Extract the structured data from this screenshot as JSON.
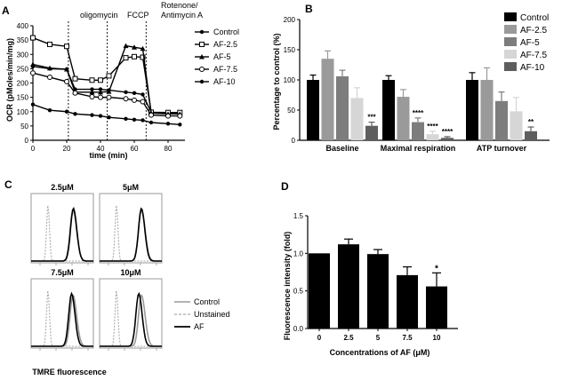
{
  "panels": {
    "A": {
      "letter": "A",
      "ylabel": "OCR (pMoles/min/mg)",
      "xlabel": "time (min)",
      "annotations": {
        "oligomycin": "oligomycin",
        "fccp": "FCCP",
        "rotenone_line1": "Rotenone/",
        "rotenone_line2": "Antimycin A"
      }
    },
    "B": {
      "letter": "B",
      "ylabel": "Percentage to control (%)"
    },
    "C": {
      "letter": "C",
      "xlabel": "TMRE fluorescence",
      "legend": [
        "Control",
        "Unstained",
        "AF"
      ],
      "subplots": [
        "2.5μM",
        "5μM",
        "7.5μM",
        "10μM"
      ]
    },
    "D": {
      "letter": "D",
      "ylabel": "Fluorescence intensity (fold)",
      "xlabel": "Concentrations of AF (μM)"
    }
  },
  "colors": {
    "control": "#000000",
    "af25": "#9a9a9a",
    "af5": "#7d7d7d",
    "af75": "#d6d6d6",
    "af10": "#5e5e5e",
    "hist_control": "#9a9a9a",
    "hist_unstained": "#aaaaaa",
    "hist_af": "#000000"
  },
  "chart_data": [
    {
      "id": "A",
      "type": "line",
      "x": [
        0,
        10,
        20,
        25,
        35,
        40,
        45,
        55,
        60,
        65,
        70,
        80,
        87
      ],
      "series": [
        {
          "name": "Control",
          "marker": "filled-circle",
          "values": [
            258,
            250,
            248,
            178,
            178,
            178,
            175,
            168,
            165,
            160,
            98,
            95,
            95
          ]
        },
        {
          "name": "AF-2.5",
          "marker": "open-square",
          "values": [
            358,
            335,
            328,
            215,
            210,
            210,
            225,
            288,
            292,
            290,
            98,
            97,
            97
          ]
        },
        {
          "name": "AF-5",
          "marker": "filled-triangle",
          "values": [
            265,
            252,
            248,
            168,
            168,
            168,
            170,
            330,
            325,
            320,
            95,
            92,
            92
          ]
        },
        {
          "name": "AF-7.5",
          "marker": "open-circle",
          "values": [
            235,
            220,
            205,
            165,
            152,
            150,
            150,
            145,
            140,
            135,
            88,
            85,
            85
          ]
        },
        {
          "name": "AF-10",
          "marker": "filled-circle",
          "values": [
            125,
            105,
            100,
            92,
            88,
            85,
            80,
            75,
            72,
            70,
            62,
            58,
            55
          ]
        }
      ],
      "xlim": [
        0,
        90
      ],
      "ylim": [
        0,
        400
      ],
      "xticks": [
        0,
        20,
        40,
        60,
        80
      ],
      "yticks": [
        0,
        50,
        100,
        150,
        200,
        250,
        300,
        350,
        400
      ],
      "vlines": [
        21,
        44,
        67
      ]
    },
    {
      "id": "B",
      "type": "bar",
      "categories": [
        "Baseline",
        "Maximal respiration",
        "ATP turnover"
      ],
      "series": [
        {
          "name": "Control",
          "values": [
            100,
            100,
            100
          ],
          "errors": [
            8,
            7,
            12
          ]
        },
        {
          "name": "AF-2.5",
          "values": [
            135,
            72,
            100
          ],
          "errors": [
            13,
            12,
            20
          ]
        },
        {
          "name": "AF-5",
          "values": [
            106,
            30,
            65
          ],
          "errors": [
            10,
            7,
            15
          ]
        },
        {
          "name": "AF-7.5",
          "values": [
            70,
            10,
            48
          ],
          "errors": [
            17,
            5,
            23
          ]
        },
        {
          "name": "AF-10",
          "values": [
            24,
            4,
            15
          ],
          "errors": [
            6,
            2,
            7
          ]
        }
      ],
      "significance": [
        {
          "category": "Baseline",
          "series": "AF-10",
          "label": "***"
        },
        {
          "category": "Maximal respiration",
          "series": "AF-5",
          "label": "****"
        },
        {
          "category": "Maximal respiration",
          "series": "AF-7.5",
          "label": "****"
        },
        {
          "category": "Maximal respiration",
          "series": "AF-10",
          "label": "****"
        },
        {
          "category": "ATP turnover",
          "series": "AF-10",
          "label": "**"
        }
      ],
      "ylim": [
        0,
        200
      ],
      "yticks": [
        0,
        50,
        100,
        150,
        200
      ]
    },
    {
      "id": "D",
      "type": "bar",
      "categories": [
        "0",
        "2.5",
        "5",
        "7.5",
        "10"
      ],
      "values": [
        1.0,
        1.12,
        0.99,
        0.71,
        0.56
      ],
      "errors": [
        0.0,
        0.07,
        0.06,
        0.11,
        0.18
      ],
      "significance": [
        {
          "category": "10",
          "label": "*"
        }
      ],
      "ylim": [
        0,
        1.5
      ],
      "yticks": [
        "0.0",
        "0.5",
        "1.0",
        "1.5"
      ]
    }
  ]
}
